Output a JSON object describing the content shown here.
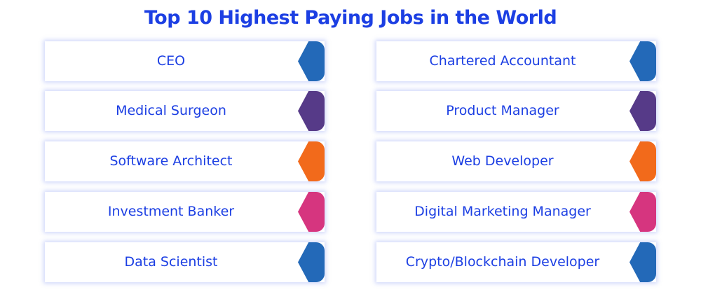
{
  "title": "Top 10 Highest Paying Jobs in the World",
  "colors": {
    "text": "#1c3fe3",
    "blue": "#2369b8",
    "purple": "#563a88",
    "orange": "#f26a1b",
    "pink": "#d6357f"
  },
  "left": [
    {
      "label": "CEO",
      "color": "#2369b8"
    },
    {
      "label": "Medical Surgeon",
      "color": "#563a88"
    },
    {
      "label": "Software Architect",
      "color": "#f26a1b"
    },
    {
      "label": "Investment Banker",
      "color": "#d6357f"
    },
    {
      "label": "Data Scientist",
      "color": "#2369b8"
    }
  ],
  "right": [
    {
      "label": "Chartered Accountant",
      "color": "#2369b8"
    },
    {
      "label": "Product Manager",
      "color": "#563a88"
    },
    {
      "label": "Web Developer",
      "color": "#f26a1b"
    },
    {
      "label": "Digital Marketing Manager",
      "color": "#d6357f"
    },
    {
      "label": "Crypto/Blockchain Developer",
      "color": "#2369b8"
    }
  ]
}
